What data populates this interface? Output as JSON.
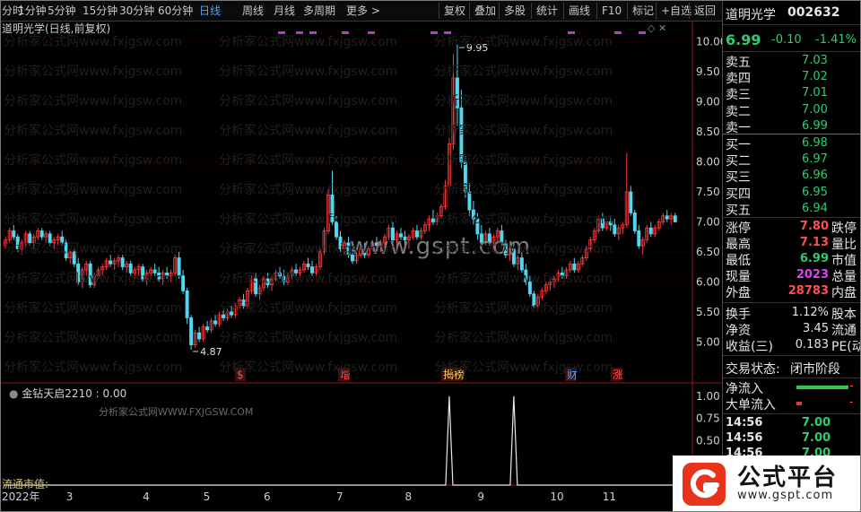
{
  "toolbar": {
    "items": [
      "分时",
      "1分钟",
      "5分钟",
      "15分钟",
      "30分钟",
      "60分钟",
      "日线",
      "周线",
      "月线",
      "多周期",
      "更多 >"
    ],
    "active": "日线",
    "right_items": [
      "复权",
      "叠加",
      "多股",
      "统计",
      "画线",
      "F10",
      "标记",
      "+自选",
      "返回"
    ]
  },
  "chart": {
    "title": "道明光学(日线,前复权)",
    "indicator_title": "金钻天启2210 : 0.00",
    "ltv_label": "流通市值:",
    "watermark": "www.gspt.com",
    "watermark_sub": "分析家公式网WWW.FXJGSW.COM",
    "faint_watermark": "分析家公式网www.fxjgsw.com",
    "x_labels": [
      "2022年",
      "3",
      "4",
      "5",
      "6",
      "7",
      "8",
      "9",
      "10",
      "11",
      "12"
    ],
    "markers": [
      "$",
      "增",
      "揭榜",
      "财",
      "涨"
    ],
    "colors": {
      "up": "#ff3b3b",
      "down": "#53d6f0",
      "grid": "#6a1010"
    }
  },
  "chart_data": {
    "type": "candlestick",
    "y_ticks": [
      10.0,
      9.5,
      9.0,
      8.5,
      8.0,
      7.5,
      7.0,
      6.5,
      6.0,
      5.5,
      5.0
    ],
    "ylim": [
      4.75,
      10.1
    ],
    "annotations": [
      {
        "label": "9.95",
        "value": 9.95
      },
      {
        "label": "4.87",
        "value": 4.87
      }
    ],
    "months": [
      {
        "label": "1",
        "x_index": 0
      },
      {
        "label": "3",
        "x_index": 15
      },
      {
        "label": "4",
        "x_index": 34
      },
      {
        "label": "5",
        "x_index": 49
      },
      {
        "label": "6",
        "x_index": 64
      },
      {
        "label": "7",
        "x_index": 82
      },
      {
        "label": "8",
        "x_index": 99
      },
      {
        "label": "9",
        "x_index": 117
      },
      {
        "label": "10",
        "x_index": 135
      },
      {
        "label": "11",
        "x_index": 148
      },
      {
        "label": "12",
        "x_index": 166
      }
    ],
    "candles": [
      [
        6.6,
        6.75,
        6.55,
        6.7
      ],
      [
        6.7,
        6.9,
        6.65,
        6.85
      ],
      [
        6.85,
        6.95,
        6.7,
        6.75
      ],
      [
        6.75,
        6.8,
        6.5,
        6.55
      ],
      [
        6.55,
        6.7,
        6.45,
        6.65
      ],
      [
        6.65,
        6.85,
        6.6,
        6.8
      ],
      [
        6.8,
        6.85,
        6.6,
        6.65
      ],
      [
        6.65,
        6.8,
        6.55,
        6.75
      ],
      [
        6.75,
        6.9,
        6.7,
        6.85
      ],
      [
        6.85,
        6.9,
        6.7,
        6.75
      ],
      [
        6.75,
        6.85,
        6.65,
        6.8
      ],
      [
        6.8,
        6.85,
        6.6,
        6.65
      ],
      [
        6.65,
        6.75,
        6.55,
        6.7
      ],
      [
        6.7,
        6.8,
        6.6,
        6.75
      ],
      [
        6.75,
        6.85,
        6.6,
        6.65
      ],
      [
        6.65,
        6.7,
        6.35,
        6.4
      ],
      [
        6.4,
        6.55,
        6.3,
        6.5
      ],
      [
        6.5,
        6.55,
        6.25,
        6.3
      ],
      [
        6.3,
        6.4,
        5.95,
        6.0
      ],
      [
        6.0,
        6.25,
        5.9,
        6.2
      ],
      [
        6.2,
        6.35,
        6.1,
        6.3
      ],
      [
        6.3,
        6.35,
        5.9,
        5.95
      ],
      [
        5.95,
        6.15,
        5.9,
        6.1
      ],
      [
        6.1,
        6.25,
        6.05,
        6.2
      ],
      [
        6.2,
        6.3,
        6.1,
        6.25
      ],
      [
        6.25,
        6.4,
        6.2,
        6.35
      ],
      [
        6.35,
        6.45,
        6.25,
        6.3
      ],
      [
        6.3,
        6.4,
        6.2,
        6.35
      ],
      [
        6.35,
        6.45,
        6.25,
        6.4
      ],
      [
        6.4,
        6.45,
        6.2,
        6.25
      ],
      [
        6.25,
        6.35,
        6.15,
        6.3
      ],
      [
        6.3,
        6.35,
        6.1,
        6.15
      ],
      [
        6.15,
        6.25,
        6.05,
        6.2
      ],
      [
        6.2,
        6.3,
        6.1,
        6.25
      ],
      [
        6.25,
        6.3,
        6.0,
        6.05
      ],
      [
        6.05,
        6.2,
        5.95,
        6.15
      ],
      [
        6.15,
        6.25,
        6.05,
        6.2
      ],
      [
        6.2,
        6.3,
        6.1,
        6.15
      ],
      [
        6.15,
        6.25,
        6.0,
        6.05
      ],
      [
        6.05,
        6.2,
        5.95,
        6.15
      ],
      [
        6.15,
        6.25,
        6.05,
        6.1
      ],
      [
        6.1,
        6.2,
        6.0,
        6.15
      ],
      [
        6.15,
        6.45,
        6.1,
        6.4
      ],
      [
        6.4,
        6.5,
        6.05,
        6.1
      ],
      [
        6.1,
        6.2,
        5.8,
        5.85
      ],
      [
        5.85,
        5.9,
        5.3,
        5.4
      ],
      [
        5.4,
        5.45,
        4.87,
        4.95
      ],
      [
        4.95,
        5.2,
        4.9,
        5.15
      ],
      [
        5.15,
        5.25,
        5.0,
        5.05
      ],
      [
        5.05,
        5.3,
        5.0,
        5.25
      ],
      [
        5.25,
        5.35,
        5.15,
        5.2
      ],
      [
        5.2,
        5.4,
        5.15,
        5.35
      ],
      [
        5.35,
        5.45,
        5.25,
        5.3
      ],
      [
        5.3,
        5.5,
        5.25,
        5.45
      ],
      [
        5.45,
        5.55,
        5.35,
        5.4
      ],
      [
        5.4,
        5.55,
        5.35,
        5.5
      ],
      [
        5.5,
        5.6,
        5.4,
        5.45
      ],
      [
        5.45,
        5.65,
        5.4,
        5.6
      ],
      [
        5.6,
        5.75,
        5.55,
        5.7
      ],
      [
        5.7,
        5.8,
        5.55,
        5.6
      ],
      [
        5.6,
        5.9,
        5.55,
        5.85
      ],
      [
        5.85,
        6.1,
        5.8,
        6.05
      ],
      [
        6.05,
        6.15,
        5.75,
        5.8
      ],
      [
        5.8,
        5.95,
        5.7,
        5.9
      ],
      [
        5.9,
        6.1,
        5.85,
        6.05
      ],
      [
        6.05,
        6.15,
        5.9,
        5.95
      ],
      [
        5.95,
        6.1,
        5.85,
        6.05
      ],
      [
        6.05,
        6.2,
        6.0,
        6.15
      ],
      [
        6.15,
        6.25,
        6.05,
        6.1
      ],
      [
        6.1,
        6.2,
        5.95,
        6.0
      ],
      [
        6.0,
        6.15,
        5.95,
        6.1
      ],
      [
        6.1,
        6.25,
        6.05,
        6.2
      ],
      [
        6.2,
        6.3,
        6.1,
        6.15
      ],
      [
        6.15,
        6.25,
        6.05,
        6.2
      ],
      [
        6.2,
        6.35,
        6.15,
        6.3
      ],
      [
        6.3,
        6.4,
        6.2,
        6.25
      ],
      [
        6.25,
        6.35,
        6.1,
        6.15
      ],
      [
        6.15,
        6.3,
        6.1,
        6.25
      ],
      [
        6.25,
        6.55,
        6.2,
        6.5
      ],
      [
        6.5,
        6.9,
        6.45,
        6.85
      ],
      [
        6.85,
        7.55,
        6.8,
        7.45
      ],
      [
        7.45,
        7.85,
        6.95,
        7.0
      ],
      [
        7.0,
        7.1,
        6.7,
        6.75
      ],
      [
        6.75,
        6.85,
        6.5,
        6.55
      ],
      [
        6.55,
        6.7,
        6.45,
        6.65
      ],
      [
        6.65,
        6.75,
        6.4,
        6.45
      ],
      [
        6.45,
        6.55,
        6.3,
        6.35
      ],
      [
        6.35,
        6.5,
        6.3,
        6.45
      ],
      [
        6.45,
        6.6,
        6.4,
        6.55
      ],
      [
        6.55,
        6.65,
        6.4,
        6.45
      ],
      [
        6.45,
        6.6,
        6.4,
        6.55
      ],
      [
        6.55,
        6.7,
        6.5,
        6.65
      ],
      [
        6.65,
        6.75,
        6.55,
        6.6
      ],
      [
        6.6,
        6.7,
        6.5,
        6.65
      ],
      [
        6.65,
        6.8,
        6.6,
        6.75
      ],
      [
        6.75,
        6.95,
        6.7,
        6.9
      ],
      [
        6.9,
        7.0,
        6.65,
        6.7
      ],
      [
        6.7,
        6.85,
        6.6,
        6.8
      ],
      [
        6.8,
        6.9,
        6.7,
        6.75
      ],
      [
        6.75,
        6.85,
        6.6,
        6.7
      ],
      [
        6.7,
        6.8,
        6.55,
        6.75
      ],
      [
        6.75,
        6.9,
        6.7,
        6.85
      ],
      [
        6.85,
        6.95,
        6.7,
        6.75
      ],
      [
        6.75,
        6.9,
        6.7,
        6.85
      ],
      [
        6.85,
        7.0,
        6.8,
        6.95
      ],
      [
        6.95,
        7.1,
        6.85,
        7.05
      ],
      [
        7.05,
        7.2,
        6.95,
        7.0
      ],
      [
        7.0,
        7.15,
        6.95,
        7.1
      ],
      [
        7.1,
        7.3,
        7.05,
        7.25
      ],
      [
        7.25,
        7.7,
        7.2,
        7.6
      ],
      [
        7.6,
        8.4,
        7.55,
        8.3
      ],
      [
        8.3,
        9.8,
        8.2,
        9.4
      ],
      [
        9.4,
        9.95,
        8.6,
        8.9
      ],
      [
        8.9,
        9.2,
        7.9,
        8.0
      ],
      [
        8.0,
        8.1,
        7.4,
        7.5
      ],
      [
        7.5,
        7.65,
        7.1,
        7.2
      ],
      [
        7.2,
        7.35,
        6.95,
        7.05
      ],
      [
        7.05,
        7.15,
        6.7,
        6.8
      ],
      [
        6.8,
        6.95,
        6.55,
        6.65
      ],
      [
        6.65,
        6.85,
        6.6,
        6.8
      ],
      [
        6.8,
        6.9,
        6.6,
        6.65
      ],
      [
        6.65,
        6.8,
        6.55,
        6.75
      ],
      [
        6.75,
        6.9,
        6.65,
        6.85
      ],
      [
        6.85,
        6.95,
        6.6,
        6.65
      ],
      [
        6.65,
        6.7,
        6.4,
        6.45
      ],
      [
        6.45,
        6.6,
        6.35,
        6.55
      ],
      [
        6.55,
        6.65,
        6.25,
        6.3
      ],
      [
        6.3,
        6.45,
        6.2,
        6.4
      ],
      [
        6.4,
        6.5,
        6.15,
        6.2
      ],
      [
        6.2,
        6.3,
        5.95,
        6.0
      ],
      [
        6.0,
        6.1,
        5.75,
        5.8
      ],
      [
        5.8,
        5.85,
        5.55,
        5.6
      ],
      [
        5.6,
        5.8,
        5.55,
        5.75
      ],
      [
        5.75,
        5.9,
        5.7,
        5.85
      ],
      [
        5.85,
        6.0,
        5.8,
        5.95
      ],
      [
        5.95,
        6.05,
        5.85,
        6.0
      ],
      [
        6.0,
        6.1,
        5.9,
        6.05
      ],
      [
        6.05,
        6.2,
        6.0,
        6.15
      ],
      [
        6.15,
        6.25,
        6.05,
        6.1
      ],
      [
        6.1,
        6.25,
        6.05,
        6.2
      ],
      [
        6.2,
        6.35,
        6.15,
        6.3
      ],
      [
        6.3,
        6.4,
        6.15,
        6.2
      ],
      [
        6.2,
        6.35,
        6.15,
        6.3
      ],
      [
        6.3,
        6.45,
        6.25,
        6.4
      ],
      [
        6.4,
        6.6,
        6.35,
        6.55
      ],
      [
        6.55,
        6.75,
        6.5,
        6.7
      ],
      [
        6.7,
        6.9,
        6.65,
        6.85
      ],
      [
        6.85,
        7.1,
        6.8,
        7.05
      ],
      [
        7.05,
        7.15,
        6.85,
        6.9
      ],
      [
        6.9,
        7.05,
        6.85,
        7.0
      ],
      [
        7.0,
        7.1,
        6.85,
        6.95
      ],
      [
        6.95,
        7.05,
        6.75,
        6.8
      ],
      [
        6.8,
        6.95,
        6.7,
        6.9
      ],
      [
        6.9,
        7.0,
        6.8,
        6.95
      ],
      [
        6.95,
        8.15,
        6.9,
        7.5
      ],
      [
        7.5,
        7.6,
        7.1,
        7.15
      ],
      [
        7.15,
        7.2,
        6.8,
        6.85
      ],
      [
        6.85,
        6.95,
        6.55,
        6.6
      ],
      [
        6.6,
        6.75,
        6.45,
        6.7
      ],
      [
        6.7,
        6.95,
        6.65,
        6.9
      ],
      [
        6.9,
        7.0,
        6.75,
        6.8
      ],
      [
        6.8,
        6.95,
        6.75,
        6.9
      ],
      [
        6.9,
        7.05,
        6.85,
        7.0
      ],
      [
        7.0,
        7.15,
        6.95,
        7.1
      ],
      [
        7.1,
        7.2,
        7.0,
        7.05
      ],
      [
        7.05,
        7.15,
        6.95,
        7.1
      ],
      [
        7.1,
        7.15,
        6.99,
        7.0
      ]
    ],
    "indicator": {
      "ylim": [
        0,
        1.1
      ],
      "y_ticks": [
        1.0,
        0.75,
        0.5,
        0.25
      ],
      "spikes_at_index": [
        110,
        126
      ]
    }
  },
  "quote": {
    "name": "道明光学",
    "code": "002632",
    "price": "6.99",
    "change": "-0.10",
    "change_pct": "-1.41%",
    "order_book": [
      {
        "label": "卖五",
        "value": "7.03"
      },
      {
        "label": "卖四",
        "value": "7.02"
      },
      {
        "label": "卖三",
        "value": "7.01"
      },
      {
        "label": "卖二",
        "value": "7.00"
      },
      {
        "label": "卖一",
        "value": "6.99"
      },
      {
        "label": "买一",
        "value": "6.98"
      },
      {
        "label": "买二",
        "value": "6.97"
      },
      {
        "label": "买三",
        "value": "6.96"
      },
      {
        "label": "买四",
        "value": "6.95"
      },
      {
        "label": "买五",
        "value": "6.94"
      }
    ],
    "stats": [
      {
        "label": "涨停",
        "value": "7.80",
        "trail": "跌停"
      },
      {
        "label": "最高",
        "value": "7.13",
        "trail": "量比"
      },
      {
        "label": "最低",
        "value": "6.99",
        "trail": "市值"
      },
      {
        "label": "现量",
        "value": "2023",
        "trail": "总量"
      },
      {
        "label": "外盘",
        "value": "28783",
        "trail": "内盘"
      }
    ],
    "fund": [
      {
        "label": "换手",
        "value": "1.12%",
        "trail": "股本"
      },
      {
        "label": "净资",
        "value": "3.45",
        "trail": "流通"
      },
      {
        "label": "收益(三)",
        "value": "0.183",
        "trail": "PE(动)"
      }
    ],
    "trade_state_label": "交易状态:",
    "trade_state": "闭市阶段",
    "net_inflow_label": "净流入",
    "net_inflow_value": "-",
    "big_inflow_label": "大单流入",
    "big_inflow_value": "-",
    "ticks": [
      {
        "time": "14:56",
        "price": "7.00"
      },
      {
        "time": "14:56",
        "price": "7.00"
      },
      {
        "time": "14:56",
        "price": "7.00"
      }
    ]
  },
  "logo": {
    "text": "公式平台",
    "url": "www.gspt.com"
  }
}
